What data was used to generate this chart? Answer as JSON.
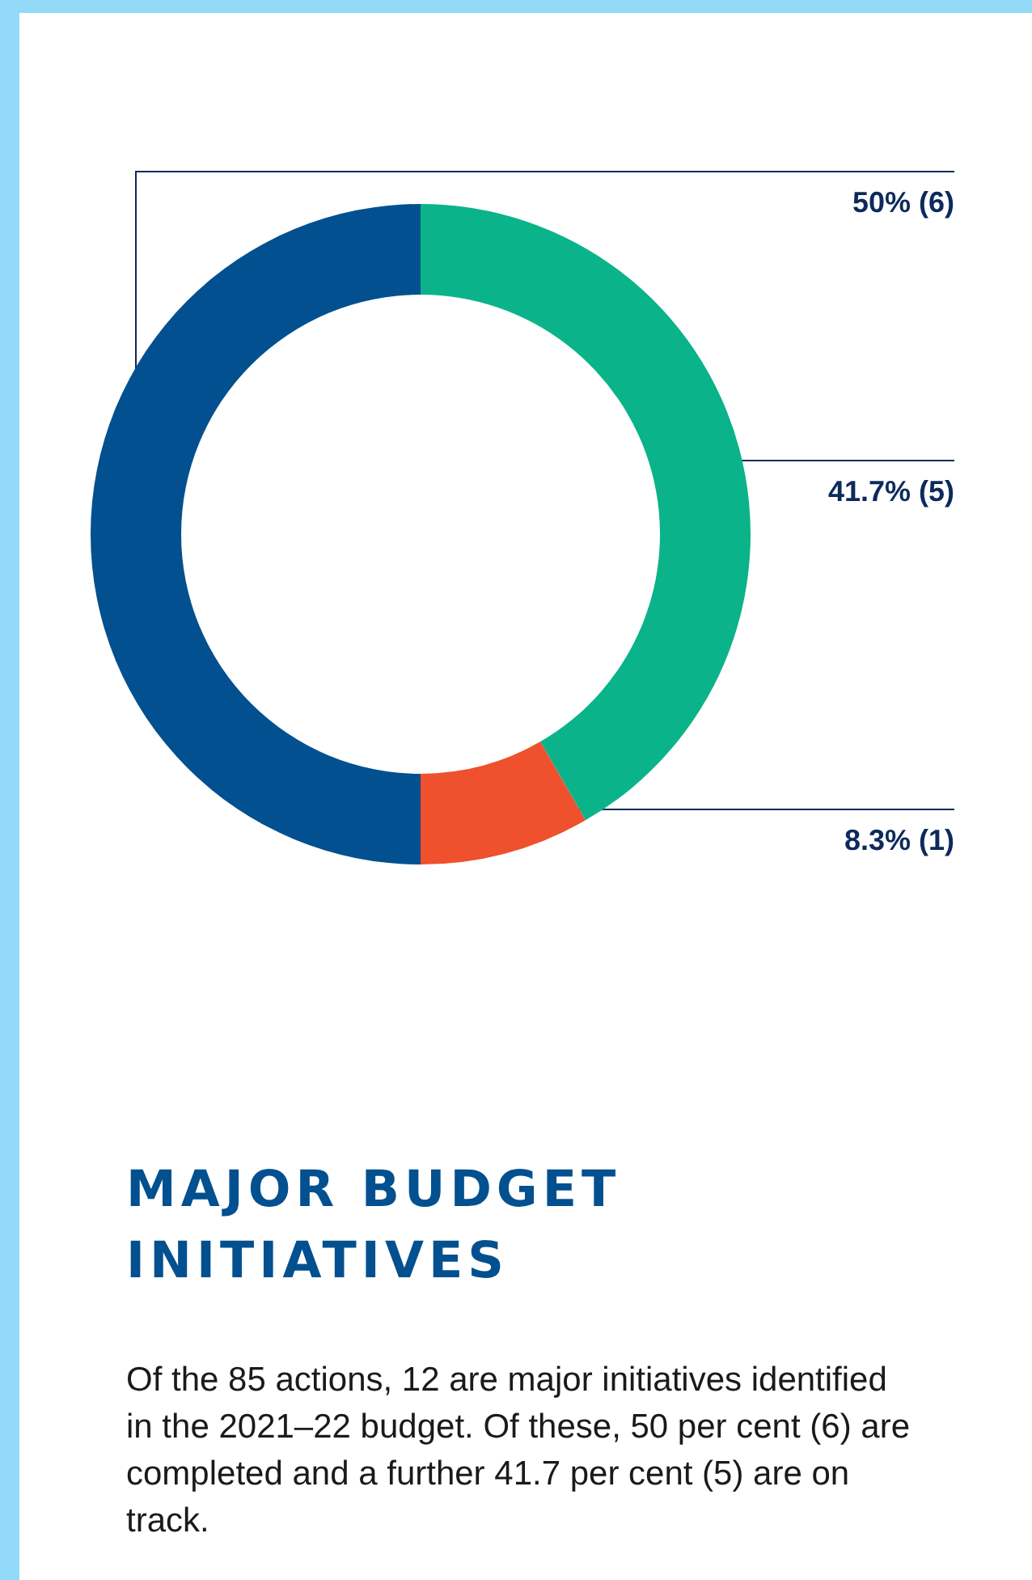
{
  "chart_data": {
    "type": "donut",
    "title": "MAJOR BUDGET INITIATIVES",
    "categories": [
      null,
      null,
      null
    ],
    "values": [
      5,
      1,
      6
    ],
    "colors": [
      "#0bb38a",
      "#ef502e",
      "#02508f"
    ],
    "value_labels": [
      "41.7% (5)",
      "8.3% (1)",
      "50% (6)"
    ],
    "annotations": [
      "Of the 85 actions, 12 are major initiatives identified in the 2021–22 budget. Of these, 50 per cent (6) are completed and a further 41.7 per cent (5) are on track."
    ]
  }
}
